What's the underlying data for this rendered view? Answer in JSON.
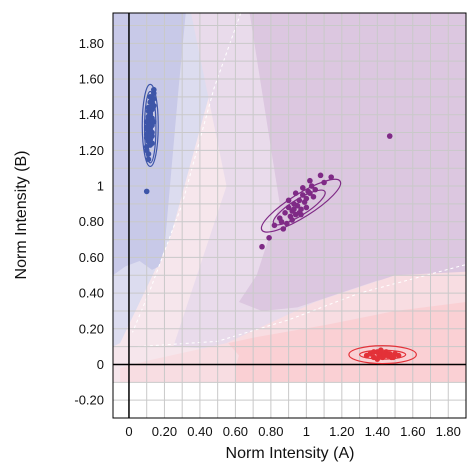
{
  "chart_data": {
    "type": "scatter",
    "xlabel": "Norm Intensity (A)",
    "ylabel": "Norm Intensity (B)",
    "xlim": [
      -0.09,
      1.9
    ],
    "ylim": [
      -0.3,
      1.97
    ],
    "x_ticks": [
      {
        "value": 0,
        "label": "0"
      },
      {
        "value": 0.2,
        "label": "0.20"
      },
      {
        "value": 0.4,
        "label": "0.40"
      },
      {
        "value": 0.6,
        "label": "0.60"
      },
      {
        "value": 0.8,
        "label": "0.80"
      },
      {
        "value": 1.0,
        "label": "1"
      },
      {
        "value": 1.2,
        "label": "1.20"
      },
      {
        "value": 1.4,
        "label": "1.40"
      },
      {
        "value": 1.6,
        "label": "1.60"
      },
      {
        "value": 1.8,
        "label": "1.80"
      }
    ],
    "y_ticks": [
      {
        "value": -0.2,
        "label": "-0.20"
      },
      {
        "value": 0,
        "label": "0"
      },
      {
        "value": 0.2,
        "label": "0.20"
      },
      {
        "value": 0.4,
        "label": "0.40"
      },
      {
        "value": 0.6,
        "label": "0.60"
      },
      {
        "value": 0.8,
        "label": "0.80"
      },
      {
        "value": 1.0,
        "label": "1"
      },
      {
        "value": 1.2,
        "label": "1.20"
      },
      {
        "value": 1.4,
        "label": "1.40"
      },
      {
        "value": 1.6,
        "label": "1.60"
      },
      {
        "value": 1.8,
        "label": "1.80"
      }
    ],
    "grid": true,
    "regions": [
      {
        "color": "#f6e6ec",
        "polygon": [
          [
            -0.09,
            -0.1
          ],
          [
            1.9,
            -0.1
          ],
          [
            1.9,
            1.97
          ],
          [
            -0.09,
            1.97
          ]
        ]
      },
      {
        "color": "#dcdcef",
        "polygon": [
          [
            -0.09,
            1.97
          ],
          [
            0.62,
            1.97
          ],
          [
            0.45,
            1.5
          ],
          [
            0.23,
            0.7
          ],
          [
            -0.05,
            0.12
          ],
          [
            -0.09,
            0.1
          ]
        ]
      },
      {
        "color": "#c8c9e8",
        "polygon": [
          [
            -0.09,
            0.5
          ],
          [
            -0.09,
            1.97
          ],
          [
            0.32,
            1.97
          ],
          [
            0.28,
            1.55
          ],
          [
            0.2,
            0.65
          ],
          [
            0.17,
            0.55
          ],
          [
            0.13,
            0.53
          ],
          [
            0.06,
            0.58
          ],
          [
            -0.02,
            0.55
          ]
        ]
      },
      {
        "color": "#e9dbeb",
        "polygon": [
          [
            0.35,
            1.97
          ],
          [
            1.9,
            1.97
          ],
          [
            1.9,
            0.42
          ],
          [
            1.3,
            0.38
          ],
          [
            0.6,
            0.08
          ],
          [
            0.25,
            0.1
          ],
          [
            0.4,
            0.55
          ],
          [
            0.55,
            1.0
          ]
        ]
      },
      {
        "color": "#dcc7e0",
        "polygon": [
          [
            0.68,
            1.97
          ],
          [
            1.9,
            1.97
          ],
          [
            1.9,
            0.52
          ],
          [
            1.4,
            0.47
          ],
          [
            0.95,
            0.32
          ],
          [
            0.75,
            0.3
          ],
          [
            0.62,
            0.35
          ],
          [
            0.72,
            0.5
          ],
          [
            0.85,
            0.9
          ]
        ]
      },
      {
        "color": "#f8dde2",
        "polygon": [
          [
            -0.05,
            -0.1
          ],
          [
            1.9,
            -0.1
          ],
          [
            1.9,
            0.52
          ],
          [
            1.5,
            0.5
          ],
          [
            1.05,
            0.35
          ],
          [
            0.55,
            0.12
          ],
          [
            0.1,
            0.02
          ],
          [
            -0.05,
            -0.02
          ]
        ]
      },
      {
        "color": "#fad0d4",
        "polygon": [
          [
            0.6,
            -0.1
          ],
          [
            1.9,
            -0.1
          ],
          [
            1.9,
            0.35
          ],
          [
            1.5,
            0.3
          ],
          [
            1.1,
            0.22
          ],
          [
            0.7,
            0.15
          ],
          [
            0.56,
            0.12
          ],
          [
            0.62,
            0.05
          ],
          [
            0.6,
            -0.02
          ]
        ]
      }
    ],
    "boundaries": [
      {
        "color": "#ffffff",
        "dashed": true,
        "points": [
          [
            0.63,
            1.97
          ],
          [
            0.48,
            1.55
          ],
          [
            0.3,
            0.9
          ],
          [
            0.12,
            0.42
          ],
          [
            0.02,
            0.18
          ]
        ]
      },
      {
        "color": "#ffffff",
        "dashed": true,
        "points": [
          [
            0.05,
            0.1
          ],
          [
            0.5,
            0.13
          ],
          [
            0.9,
            0.25
          ],
          [
            1.3,
            0.4
          ],
          [
            1.9,
            0.56
          ]
        ]
      }
    ],
    "series": [
      {
        "color": "#3d55a8",
        "x": [
          0.1,
          0.11,
          0.13,
          0.12,
          0.1,
          0.14,
          0.11,
          0.12,
          0.13,
          0.1,
          0.11,
          0.12,
          0.14,
          0.13,
          0.1,
          0.12,
          0.11,
          0.13,
          0.12,
          0.11,
          0.1,
          0.12,
          0.13,
          0.14,
          0.11,
          0.12,
          0.1,
          0.13,
          0.12,
          0.11,
          0.14,
          0.13,
          0.12,
          0.11,
          0.1,
          0.12,
          0.13,
          0.11,
          0.12,
          0.14,
          0.1
        ],
        "y": [
          1.22,
          1.25,
          1.28,
          1.3,
          1.33,
          1.36,
          1.38,
          1.4,
          1.43,
          1.27,
          1.31,
          1.35,
          1.45,
          1.48,
          1.2,
          1.5,
          1.18,
          1.24,
          1.32,
          1.42,
          1.29,
          1.37,
          1.34,
          1.52,
          1.39,
          1.26,
          1.36,
          1.46,
          1.41,
          1.15,
          1.49,
          1.3,
          1.23,
          1.44,
          1.32,
          1.28,
          1.38,
          1.34,
          1.47,
          1.54,
          0.97
        ]
      },
      {
        "color": "#7f2a86",
        "x": [
          0.75,
          0.79,
          0.82,
          0.85,
          0.86,
          0.88,
          0.89,
          0.9,
          0.91,
          0.92,
          0.93,
          0.94,
          0.95,
          0.96,
          0.97,
          0.98,
          0.99,
          1.0,
          1.01,
          1.02,
          1.03,
          1.05,
          1.08,
          1.1,
          1.14,
          0.87,
          0.92,
          0.96,
          1.0,
          1.04,
          0.9,
          0.94,
          0.98,
          1.02,
          0.93,
          0.97,
          1.47
        ],
        "y": [
          0.66,
          0.71,
          0.78,
          0.82,
          0.8,
          0.85,
          0.79,
          0.88,
          0.83,
          0.86,
          0.9,
          0.84,
          0.89,
          0.92,
          0.87,
          0.95,
          0.91,
          0.93,
          0.97,
          0.96,
          1.0,
          0.98,
          1.06,
          1.02,
          1.05,
          0.76,
          0.81,
          0.85,
          0.88,
          0.94,
          0.92,
          0.96,
          0.99,
          1.03,
          0.87,
          0.84,
          1.28
        ]
      },
      {
        "color": "#e33138",
        "x": [
          1.34,
          1.36,
          1.38,
          1.4,
          1.41,
          1.42,
          1.43,
          1.44,
          1.45,
          1.46,
          1.47,
          1.48,
          1.5,
          1.52,
          1.38,
          1.4,
          1.44,
          1.46,
          1.49,
          1.42
        ],
        "y": [
          0.05,
          0.06,
          0.04,
          0.07,
          0.05,
          0.06,
          0.04,
          0.05,
          0.07,
          0.05,
          0.06,
          0.04,
          0.06,
          0.05,
          0.07,
          0.03,
          0.06,
          0.05,
          0.04,
          0.08
        ]
      }
    ],
    "ellipses": [
      {
        "color": "#3d55a8",
        "cx": 0.12,
        "cy": 1.33,
        "rx": 0.032,
        "ry": 0.2,
        "angle": 0
      },
      {
        "color": "#3d55a8",
        "cx": 0.12,
        "cy": 1.34,
        "rx": 0.045,
        "ry": 0.23,
        "angle": 0
      },
      {
        "color": "#7f2a86",
        "cx": 0.96,
        "cy": 0.88,
        "rx": 0.17,
        "ry": 0.045,
        "angle": 32
      },
      {
        "color": "#7f2a86",
        "cx": 0.97,
        "cy": 0.89,
        "rx": 0.26,
        "ry": 0.065,
        "angle": 32
      },
      {
        "color": "#e33138",
        "cx": 1.43,
        "cy": 0.055,
        "rx": 0.13,
        "ry": 0.025,
        "angle": 0
      },
      {
        "color": "#e33138",
        "cx": 1.43,
        "cy": 0.055,
        "rx": 0.19,
        "ry": 0.05,
        "angle": 0
      }
    ]
  }
}
